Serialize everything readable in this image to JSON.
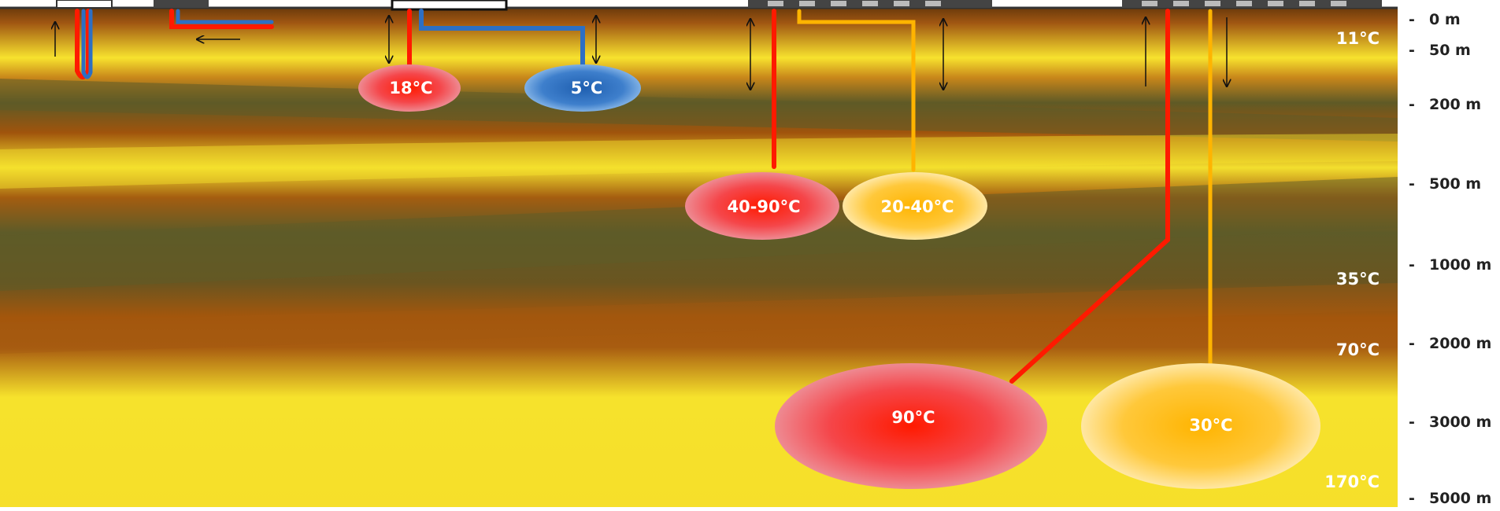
{
  "depth_scale": {
    "labels": [
      "0 m",
      "50 m",
      "200 m",
      "500 m",
      "1000 m",
      "2000 m",
      "3000 m",
      "5000 m"
    ]
  },
  "ground_temperatures": [
    "11°C",
    "35°C",
    "70°C",
    "170°C"
  ],
  "reservoirs": {
    "shallow_warm": "18°C",
    "shallow_cold": "5°C",
    "medium_hot": "40-90°C",
    "medium_warm": "20-40°C",
    "deep_hot": "90°C",
    "deep_warm": "30°C"
  },
  "colors": {
    "hot_pipe": "#ff1a00",
    "cold_pipe": "#2d6fc4",
    "warm_pipe": "#ffb400",
    "layer_yellow": "#f6e22c",
    "layer_brown": "#a0520a",
    "layer_olive": "#5e5b28"
  }
}
